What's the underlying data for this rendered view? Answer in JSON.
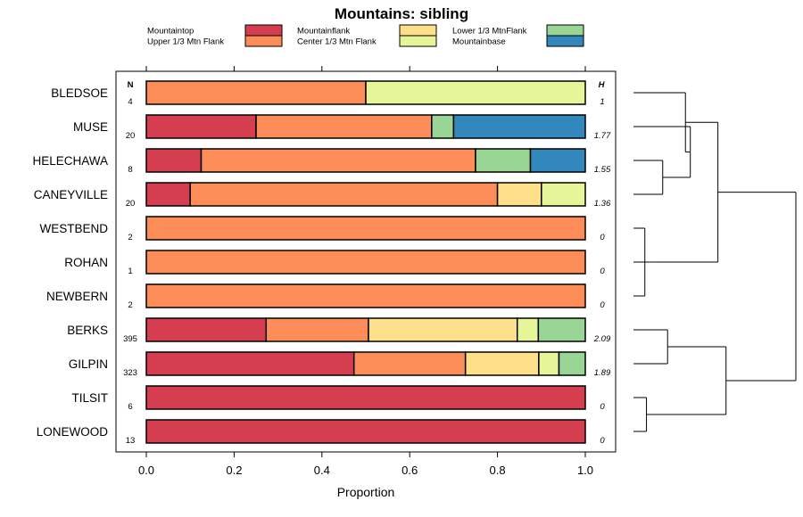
{
  "chart_data": {
    "type": "bar",
    "orientation": "horizontal-stacked",
    "title": "Mountains: sibling",
    "xlabel": "Proportion",
    "ylabel": "",
    "xlim": [
      0,
      1
    ],
    "xticks": [
      "0.0",
      "0.2",
      "0.4",
      "0.6",
      "0.8",
      "1.0"
    ],
    "n_header": "N",
    "h_header": "H",
    "legend": [
      {
        "name": "Mountaintop",
        "color": "#d53e4f"
      },
      {
        "name": "Upper 1/3 Mtn Flank",
        "color": "#fc8d59"
      },
      {
        "name": "Mountainflank",
        "color": "#fee08b"
      },
      {
        "name": "Center 1/3 Mtn Flank",
        "color": "#e6f598"
      },
      {
        "name": "Lower 1/3 MtnFlank",
        "color": "#99d594"
      },
      {
        "name": "Mountainbase",
        "color": "#3288bd"
      }
    ],
    "rows": [
      {
        "label": "BLEDSOE",
        "n": "4",
        "h": "1",
        "values": [
          0,
          0.5,
          0,
          0.5,
          0,
          0
        ]
      },
      {
        "label": "MUSE",
        "n": "20",
        "h": "1.77",
        "values": [
          0.25,
          0.4,
          0,
          0,
          0.05,
          0.3
        ]
      },
      {
        "label": "HELECHAWA",
        "n": "8",
        "h": "1.55",
        "values": [
          0.125,
          0.625,
          0,
          0,
          0.125,
          0.125
        ]
      },
      {
        "label": "CANEYVILLE",
        "n": "20",
        "h": "1.36",
        "values": [
          0.1,
          0.7,
          0.1,
          0.1,
          0,
          0
        ]
      },
      {
        "label": "WESTBEND",
        "n": "2",
        "h": "0",
        "values": [
          0,
          1.0,
          0,
          0,
          0,
          0
        ]
      },
      {
        "label": "ROHAN",
        "n": "1",
        "h": "0",
        "values": [
          0,
          1.0,
          0,
          0,
          0,
          0
        ]
      },
      {
        "label": "NEWBERN",
        "n": "2",
        "h": "0",
        "values": [
          0,
          1.0,
          0,
          0,
          0,
          0
        ]
      },
      {
        "label": "BERKS",
        "n": "395",
        "h": "2.09",
        "values": [
          0.273,
          0.233,
          0.339,
          0.048,
          0.107,
          0
        ]
      },
      {
        "label": "GILPIN",
        "n": "323",
        "h": "1.89",
        "values": [
          0.473,
          0.254,
          0.167,
          0.046,
          0.06,
          0
        ]
      },
      {
        "label": "TILSIT",
        "n": "6",
        "h": "0",
        "values": [
          1.0,
          0,
          0,
          0,
          0,
          0
        ]
      },
      {
        "label": "LONEWOOD",
        "n": "13",
        "h": "0",
        "values": [
          1.0,
          0,
          0,
          0,
          0,
          0
        ]
      }
    ],
    "dendrogram": {
      "merges": [
        {
          "a": "WESTBEND",
          "b": "NEWBERN",
          "height": 0.07
        },
        {
          "a": "ROHAN",
          "b": "c1",
          "height": 0.1
        },
        {
          "a": "HELECHAWA",
          "b": "CANEYVILLE",
          "height": 0.18
        },
        {
          "a": "MUSE",
          "b": "c3",
          "height": 0.35
        },
        {
          "a": "BLEDSOE",
          "b": "c4",
          "height": 0.32
        },
        {
          "a": "c2",
          "b": "c5",
          "height": 0.52
        },
        {
          "a": "BERKS",
          "b": "GILPIN",
          "height": 0.21
        },
        {
          "a": "TILSIT",
          "b": "LONEWOOD",
          "height": 0.08
        },
        {
          "a": "c7",
          "b": "c8",
          "height": 0.57
        },
        {
          "a": "c6",
          "b": "c9",
          "height": 1.0
        }
      ]
    }
  }
}
